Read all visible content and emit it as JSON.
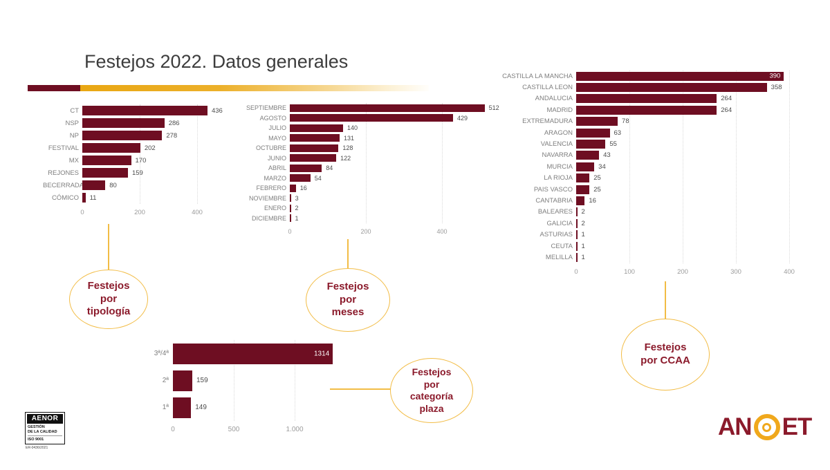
{
  "title": "Festejos 2022. Datos generales",
  "colors": {
    "bar_maroon": "#6E0E22",
    "accent_gold": "#E9A713",
    "callout_border_gold": "#F2BC45",
    "callout_text_maroon": "#8B1A2B",
    "axis_gray": "#9b9b9b"
  },
  "callouts": [
    {
      "id": "tipologia",
      "text": "Festejos\npor\ntipología"
    },
    {
      "id": "meses",
      "text": "Festejos\npor\nmeses"
    },
    {
      "id": "ccaa",
      "text": "Festejos\npor CCAA"
    },
    {
      "id": "categoria",
      "text": "Festejos\npor\ncategoría\nplaza"
    }
  ],
  "logos": {
    "aenor": {
      "name": "AENOR",
      "subtitle": "GESTIÓN\nDE LA CALIDAD",
      "cert": "ISO 9001",
      "reg": "ER-0436/2021"
    },
    "anoet": {
      "left": "AN",
      "right": "ET"
    }
  },
  "chart_data": [
    {
      "id": "tipologia",
      "type": "bar",
      "title": "Festejos por tipología",
      "orientation": "horizontal",
      "categories": [
        "CT",
        "NSP",
        "NP",
        "FESTIVAL",
        "MX",
        "REJONES",
        "BECERRADA",
        "CÓMICO"
      ],
      "values": [
        436,
        286,
        278,
        202,
        170,
        159,
        80,
        11
      ],
      "xlim": [
        0,
        480
      ],
      "grid": true,
      "inside_value_labels": [],
      "ticks": [
        {
          "value": 0,
          "label": "0"
        },
        {
          "value": 200,
          "label": "200"
        },
        {
          "value": 400,
          "label": "400"
        }
      ]
    },
    {
      "id": "meses",
      "type": "bar",
      "title": "Festejos por meses",
      "orientation": "horizontal",
      "categories": [
        "SEPTIEMBRE",
        "AGOSTO",
        "JULIO",
        "MAYO",
        "OCTUBRE",
        "JUNIO",
        "ABRIL",
        "MARZO",
        "FEBRERO",
        "NOVIEMBRE",
        "ENERO",
        "DICIEMBRE"
      ],
      "values": [
        512,
        429,
        140,
        131,
        128,
        122,
        84,
        54,
        16,
        3,
        2,
        1
      ],
      "xlim": [
        0,
        530
      ],
      "grid": true,
      "inside_value_labels": [],
      "ticks": [
        {
          "value": 0,
          "label": "0"
        },
        {
          "value": 200,
          "label": "200"
        },
        {
          "value": 400,
          "label": "400"
        }
      ]
    },
    {
      "id": "ccaa",
      "type": "bar",
      "title": "Festejos por CCAA",
      "orientation": "horizontal",
      "categories": [
        "CASTILLA LA MANCHA",
        "CASTILLA LEON",
        "ANDALUCIA",
        "MADRID",
        "EXTREMADURA",
        "ARAGON",
        "VALENCIA",
        "NAVARRA",
        "MURCIA",
        "LA RIOJA",
        "PAIS VASCO",
        "CANTABRIA",
        "BALEARES",
        "GALICIA",
        "ASTURIAS",
        "CEUTA",
        "MELILLA"
      ],
      "values": [
        390,
        358,
        264,
        264,
        78,
        63,
        55,
        43,
        34,
        25,
        25,
        16,
        2,
        2,
        1,
        1,
        1
      ],
      "xlim": [
        0,
        400
      ],
      "grid": true,
      "inside_value_labels": [
        0
      ],
      "ticks": [
        {
          "value": 0,
          "label": "0"
        },
        {
          "value": 100,
          "label": "100"
        },
        {
          "value": 200,
          "label": "200"
        },
        {
          "value": 300,
          "label": "300"
        },
        {
          "value": 400,
          "label": "400"
        }
      ]
    },
    {
      "id": "categoria",
      "type": "bar",
      "title": "Festejos por categoría plaza",
      "orientation": "horizontal",
      "categories": [
        "3ª/4ª",
        "2ª",
        "1ª"
      ],
      "values": [
        1314,
        159,
        149
      ],
      "xlim": [
        0,
        1400
      ],
      "grid": true,
      "inside_value_labels": [
        0
      ],
      "ticks": [
        {
          "value": 0,
          "label": "0"
        },
        {
          "value": 500,
          "label": "500"
        },
        {
          "value": 1000,
          "label": "1.000"
        }
      ]
    }
  ]
}
